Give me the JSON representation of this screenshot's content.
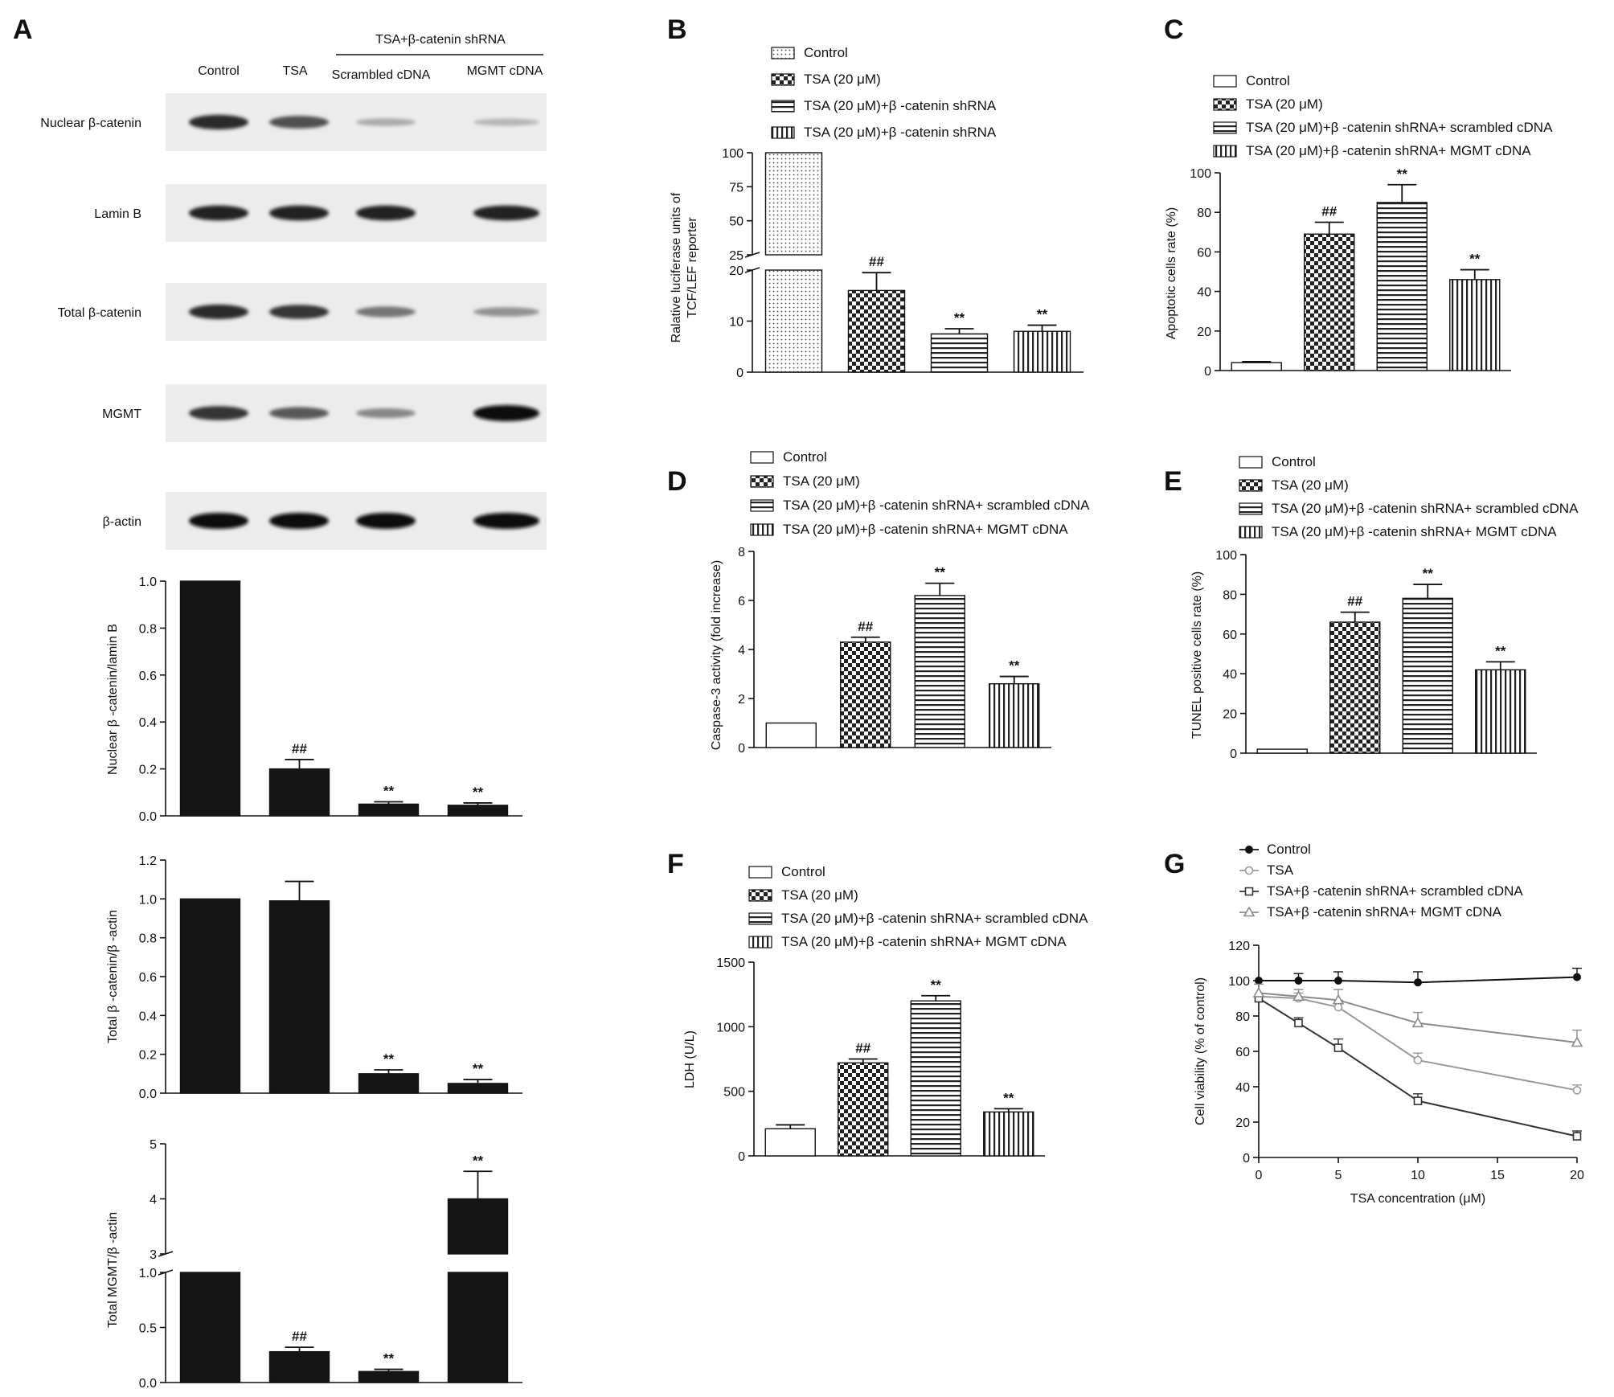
{
  "panel_letters": [
    "A",
    "B",
    "C",
    "D",
    "E",
    "F",
    "G"
  ],
  "blot": {
    "group_header": "TSA+β-catenin shRNA",
    "lanes": [
      "Control",
      "TSA",
      "Scrambled cDNA",
      "MGMT cDNA"
    ],
    "rows": [
      {
        "label": "Nuclear β-catenin",
        "intensity": [
          0.85,
          0.65,
          0.15,
          0.1
        ]
      },
      {
        "label": "Lamin B",
        "intensity": [
          0.9,
          0.9,
          0.9,
          0.9
        ]
      },
      {
        "label": "Total β-catenin",
        "intensity": [
          0.85,
          0.8,
          0.45,
          0.3
        ]
      },
      {
        "label": "MGMT",
        "intensity": [
          0.8,
          0.6,
          0.35,
          1.0
        ]
      },
      {
        "label": "β-actin",
        "intensity": [
          1.0,
          1.0,
          1.0,
          1.0
        ]
      }
    ]
  },
  "colors": {
    "bar_dark": "#151515",
    "axis": "#111111",
    "line_light": "#9a9a9a",
    "line_dark": "#333333"
  },
  "chart_data": [
    {
      "id": "A1",
      "type": "bar",
      "ylabel": "Nuclear β -catenin/lamin B",
      "categories": [
        "Control",
        "TSA",
        "Scrambled cDNA",
        "MGMT cDNA"
      ],
      "values": [
        1.0,
        0.2,
        0.05,
        0.045
      ],
      "errors": [
        0,
        0.04,
        0.01,
        0.01
      ],
      "annotations": [
        "",
        "##",
        "**",
        "**"
      ],
      "ylim": [
        0,
        1.0
      ],
      "ticks": [
        "0.0",
        "0.2",
        "0.4",
        "0.6",
        "0.8",
        "1.0"
      ]
    },
    {
      "id": "A2",
      "type": "bar",
      "ylabel": "Total β -catenin/β -actin",
      "categories": [
        "Control",
        "TSA",
        "Scrambled cDNA",
        "MGMT cDNA"
      ],
      "values": [
        1.0,
        0.99,
        0.1,
        0.05
      ],
      "errors": [
        0,
        0.1,
        0.02,
        0.02
      ],
      "annotations": [
        "",
        "",
        "**",
        "**"
      ],
      "ylim": [
        0,
        1.2
      ],
      "ticks": [
        "0.0",
        "0.2",
        "0.4",
        "0.6",
        "0.8",
        "1.0",
        "1.2"
      ]
    },
    {
      "id": "A3",
      "type": "bar",
      "broken_axis": true,
      "ylabel": "Total MGMT/β -actin",
      "categories": [
        "Control",
        "TSA",
        "Scrambled cDNA",
        "MGMT cDNA"
      ],
      "values": [
        1.0,
        0.28,
        0.1,
        4.0
      ],
      "errors": [
        0,
        0.04,
        0.02,
        0.5
      ],
      "annotations": [
        "",
        "##",
        "**",
        "**"
      ],
      "lower_ylim": [
        0,
        1.0
      ],
      "lower_ticks": [
        "0.0",
        "0.5",
        "1.0"
      ],
      "upper_ylim": [
        3,
        5
      ],
      "upper_ticks": [
        "3",
        "4",
        "5"
      ]
    },
    {
      "id": "B",
      "type": "bar",
      "broken_axis": true,
      "ylabel": "Ralative luciferase units of TCF/LEF reporter",
      "legend": [
        "Control",
        "TSA (20 μM)",
        "TSA (20 μM)+β -catenin shRNA",
        "TSA (20 μM)+β -catenin shRNA"
      ],
      "patterns": [
        "dots",
        "check",
        "hlines",
        "vlines"
      ],
      "values": [
        100,
        16,
        7.5,
        8
      ],
      "errors": [
        0,
        3.5,
        1,
        1.2
      ],
      "annotations": [
        "",
        "##",
        "**",
        "**"
      ],
      "lower_ylim": [
        0,
        20
      ],
      "lower_ticks": [
        "0",
        "10",
        "20"
      ],
      "upper_ylim": [
        25,
        100
      ],
      "upper_ticks": [
        "25",
        "50",
        "75",
        "100"
      ]
    },
    {
      "id": "C",
      "type": "bar",
      "ylabel": "Apoptotic cells rate (%)",
      "legend": [
        "Control",
        "TSA (20 μM)",
        "TSA (20 μM)+β -catenin shRNA+ scrambled cDNA",
        "TSA (20 μM)+β -catenin shRNA+ MGMT cDNA"
      ],
      "patterns": [
        "white",
        "check",
        "hlines",
        "vlines"
      ],
      "values": [
        4,
        69,
        85,
        46
      ],
      "errors": [
        0.5,
        6,
        9,
        5
      ],
      "annotations": [
        "",
        "##",
        "**",
        "**"
      ],
      "ylim": [
        0,
        100
      ],
      "ticks": [
        "0",
        "20",
        "40",
        "60",
        "80",
        "100"
      ]
    },
    {
      "id": "D",
      "type": "bar",
      "ylabel": "Caspase-3 activity (fold increase)",
      "legend": [
        "Control",
        "TSA (20 μM)",
        "TSA (20 μM)+β -catenin shRNA+ scrambled cDNA",
        "TSA (20 μM)+β -catenin shRNA+ MGMT cDNA"
      ],
      "patterns": [
        "white",
        "check",
        "hlines",
        "vlines"
      ],
      "values": [
        1.0,
        4.3,
        6.2,
        2.6
      ],
      "errors": [
        0,
        0.2,
        0.5,
        0.3
      ],
      "annotations": [
        "",
        "##",
        "**",
        "**"
      ],
      "ylim": [
        0,
        8
      ],
      "ticks": [
        "0",
        "2",
        "4",
        "6",
        "8"
      ]
    },
    {
      "id": "E",
      "type": "bar",
      "ylabel": "TUNEL positive cells rate (%)",
      "legend": [
        "Control",
        "TSA (20 μM)",
        "TSA (20 μM)+β -catenin shRNA+ scrambled cDNA",
        "TSA (20 μM)+β -catenin shRNA+ MGMT cDNA"
      ],
      "patterns": [
        "white",
        "check",
        "hlines",
        "vlines"
      ],
      "values": [
        2,
        66,
        78,
        42
      ],
      "errors": [
        0,
        5,
        7,
        4
      ],
      "annotations": [
        "",
        "##",
        "**",
        "**"
      ],
      "ylim": [
        0,
        100
      ],
      "ticks": [
        "0",
        "20",
        "40",
        "60",
        "80",
        "100"
      ]
    },
    {
      "id": "F",
      "type": "bar",
      "ylabel": "LDH (U/L)",
      "legend": [
        "Control",
        "TSA (20 μM)",
        "TSA (20 μM)+β -catenin shRNA+ scrambled cDNA",
        "TSA (20 μM)+β -catenin shRNA+ MGMT cDNA"
      ],
      "patterns": [
        "white",
        "check",
        "hlines",
        "vlines"
      ],
      "values": [
        210,
        720,
        1200,
        340
      ],
      "errors": [
        30,
        30,
        40,
        25
      ],
      "annotations": [
        "",
        "##",
        "**",
        "**"
      ],
      "ylim": [
        0,
        1500
      ],
      "ticks": [
        "0",
        "500",
        "1000",
        "1500"
      ]
    },
    {
      "id": "G",
      "type": "line",
      "xlabel": "TSA concentration (μM)",
      "ylabel": "Cell viability (% of control)",
      "x": [
        0,
        2.5,
        5,
        10,
        20
      ],
      "xlim": [
        0,
        20
      ],
      "xticks": [
        "0",
        "5",
        "10",
        "15",
        "20"
      ],
      "ylim": [
        0,
        120
      ],
      "yticks": [
        "0",
        "20",
        "40",
        "60",
        "80",
        "100",
        "120"
      ],
      "series": [
        {
          "name": "Control",
          "marker": "filled-circle",
          "values": [
            100,
            100,
            100,
            99,
            102
          ],
          "errors": [
            0,
            4,
            5,
            6,
            5
          ]
        },
        {
          "name": "TSA",
          "marker": "open-circle",
          "values": [
            91,
            90,
            85,
            55,
            38
          ],
          "errors": [
            0,
            3,
            4,
            4,
            3
          ]
        },
        {
          "name": "TSA+β -catenin shRNA+ scrambled cDNA",
          "marker": "open-square",
          "values": [
            90,
            76,
            62,
            32,
            12
          ],
          "errors": [
            0,
            3,
            5,
            4,
            3
          ]
        },
        {
          "name": "TSA+β -catenin shRNA+ MGMT cDNA",
          "marker": "open-triangle",
          "values": [
            93,
            91,
            89,
            76,
            65
          ],
          "errors": [
            5,
            4,
            6,
            6,
            7
          ]
        }
      ]
    }
  ]
}
